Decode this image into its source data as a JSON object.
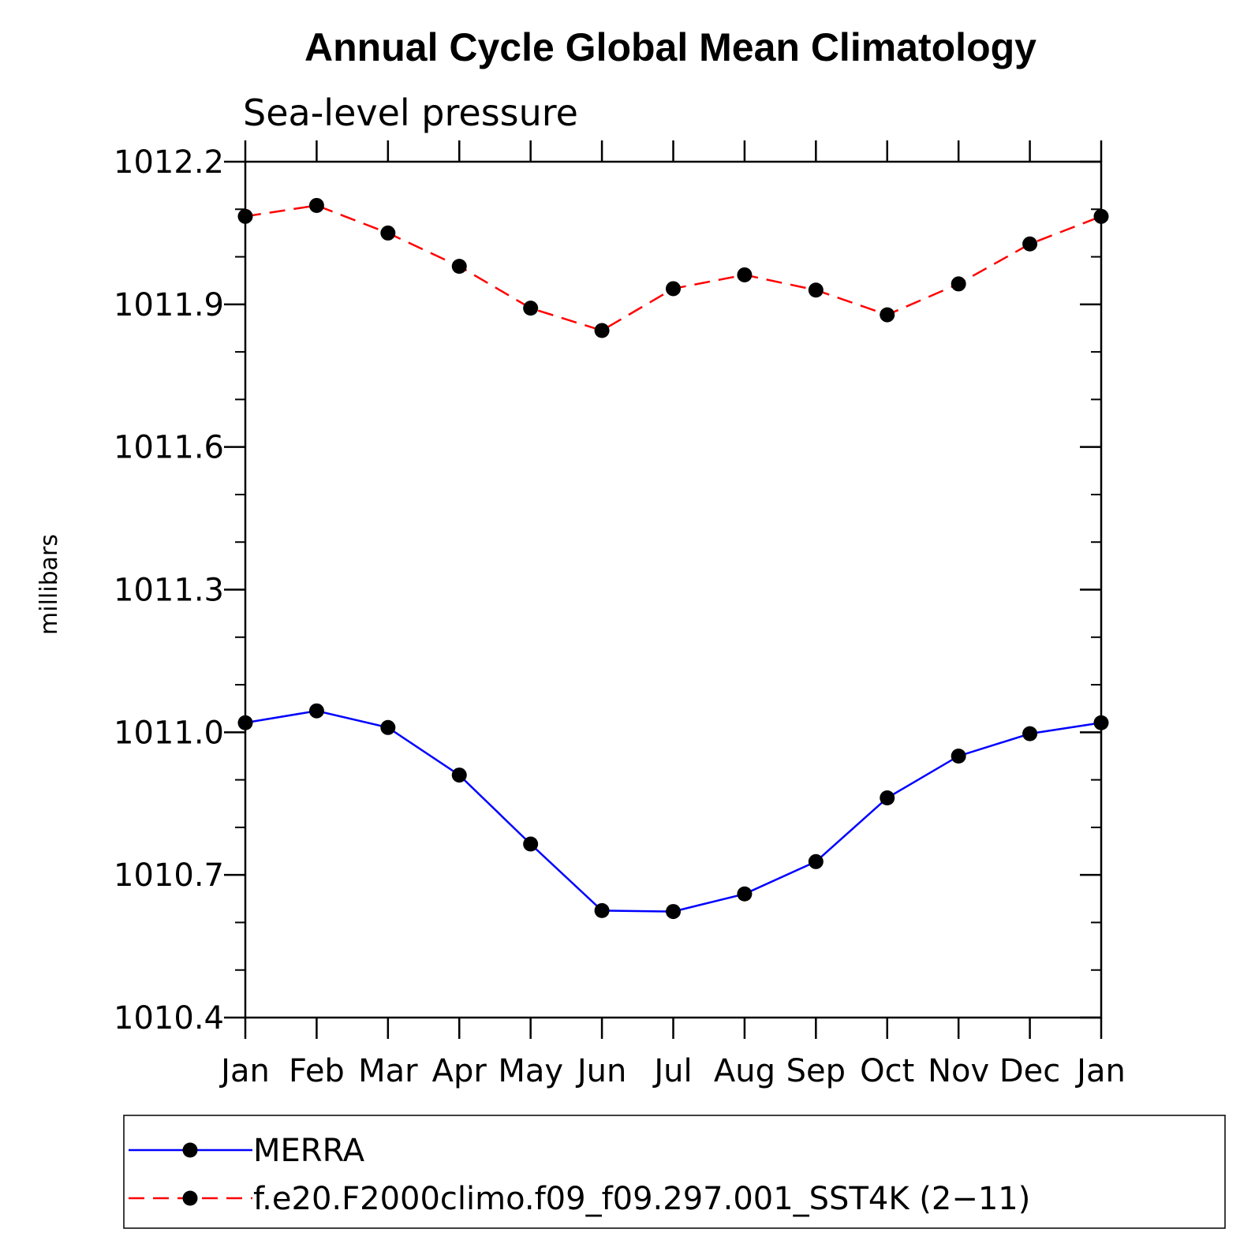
{
  "chart_data": {
    "type": "line",
    "title": "Annual Cycle Global Mean Climatology",
    "subtitle": "Sea-level pressure",
    "xlabel": "",
    "ylabel": "millibars",
    "categories": [
      "Jan",
      "Feb",
      "Mar",
      "Apr",
      "May",
      "Jun",
      "Jul",
      "Aug",
      "Sep",
      "Oct",
      "Nov",
      "Dec",
      "Jan"
    ],
    "ylim": [
      1010.4,
      1012.2
    ],
    "yticks": [
      "1010.4",
      "1010.7",
      "1011.0",
      "1011.3",
      "1011.6",
      "1011.9",
      "1012.2"
    ],
    "grid": false,
    "legend_position": "bottom",
    "series": [
      {
        "name": "MERRA",
        "color": "#0000ff",
        "dash": "solid",
        "marker": "filled-circle",
        "values": [
          1011.02,
          1011.045,
          1011.01,
          1010.91,
          1010.765,
          1010.625,
          1010.623,
          1010.66,
          1010.728,
          1010.862,
          1010.95,
          1010.997,
          1011.02
        ]
      },
      {
        "name": "f.e20.F2000climo.f09_f09.297.001_SST4K (2−11)",
        "color": "#ff0000",
        "dash": "dashed",
        "marker": "filled-circle",
        "values": [
          1012.085,
          1012.108,
          1012.05,
          1011.98,
          1011.892,
          1011.845,
          1011.933,
          1011.962,
          1011.93,
          1011.878,
          1011.943,
          1012.027,
          1012.085
        ]
      }
    ]
  }
}
